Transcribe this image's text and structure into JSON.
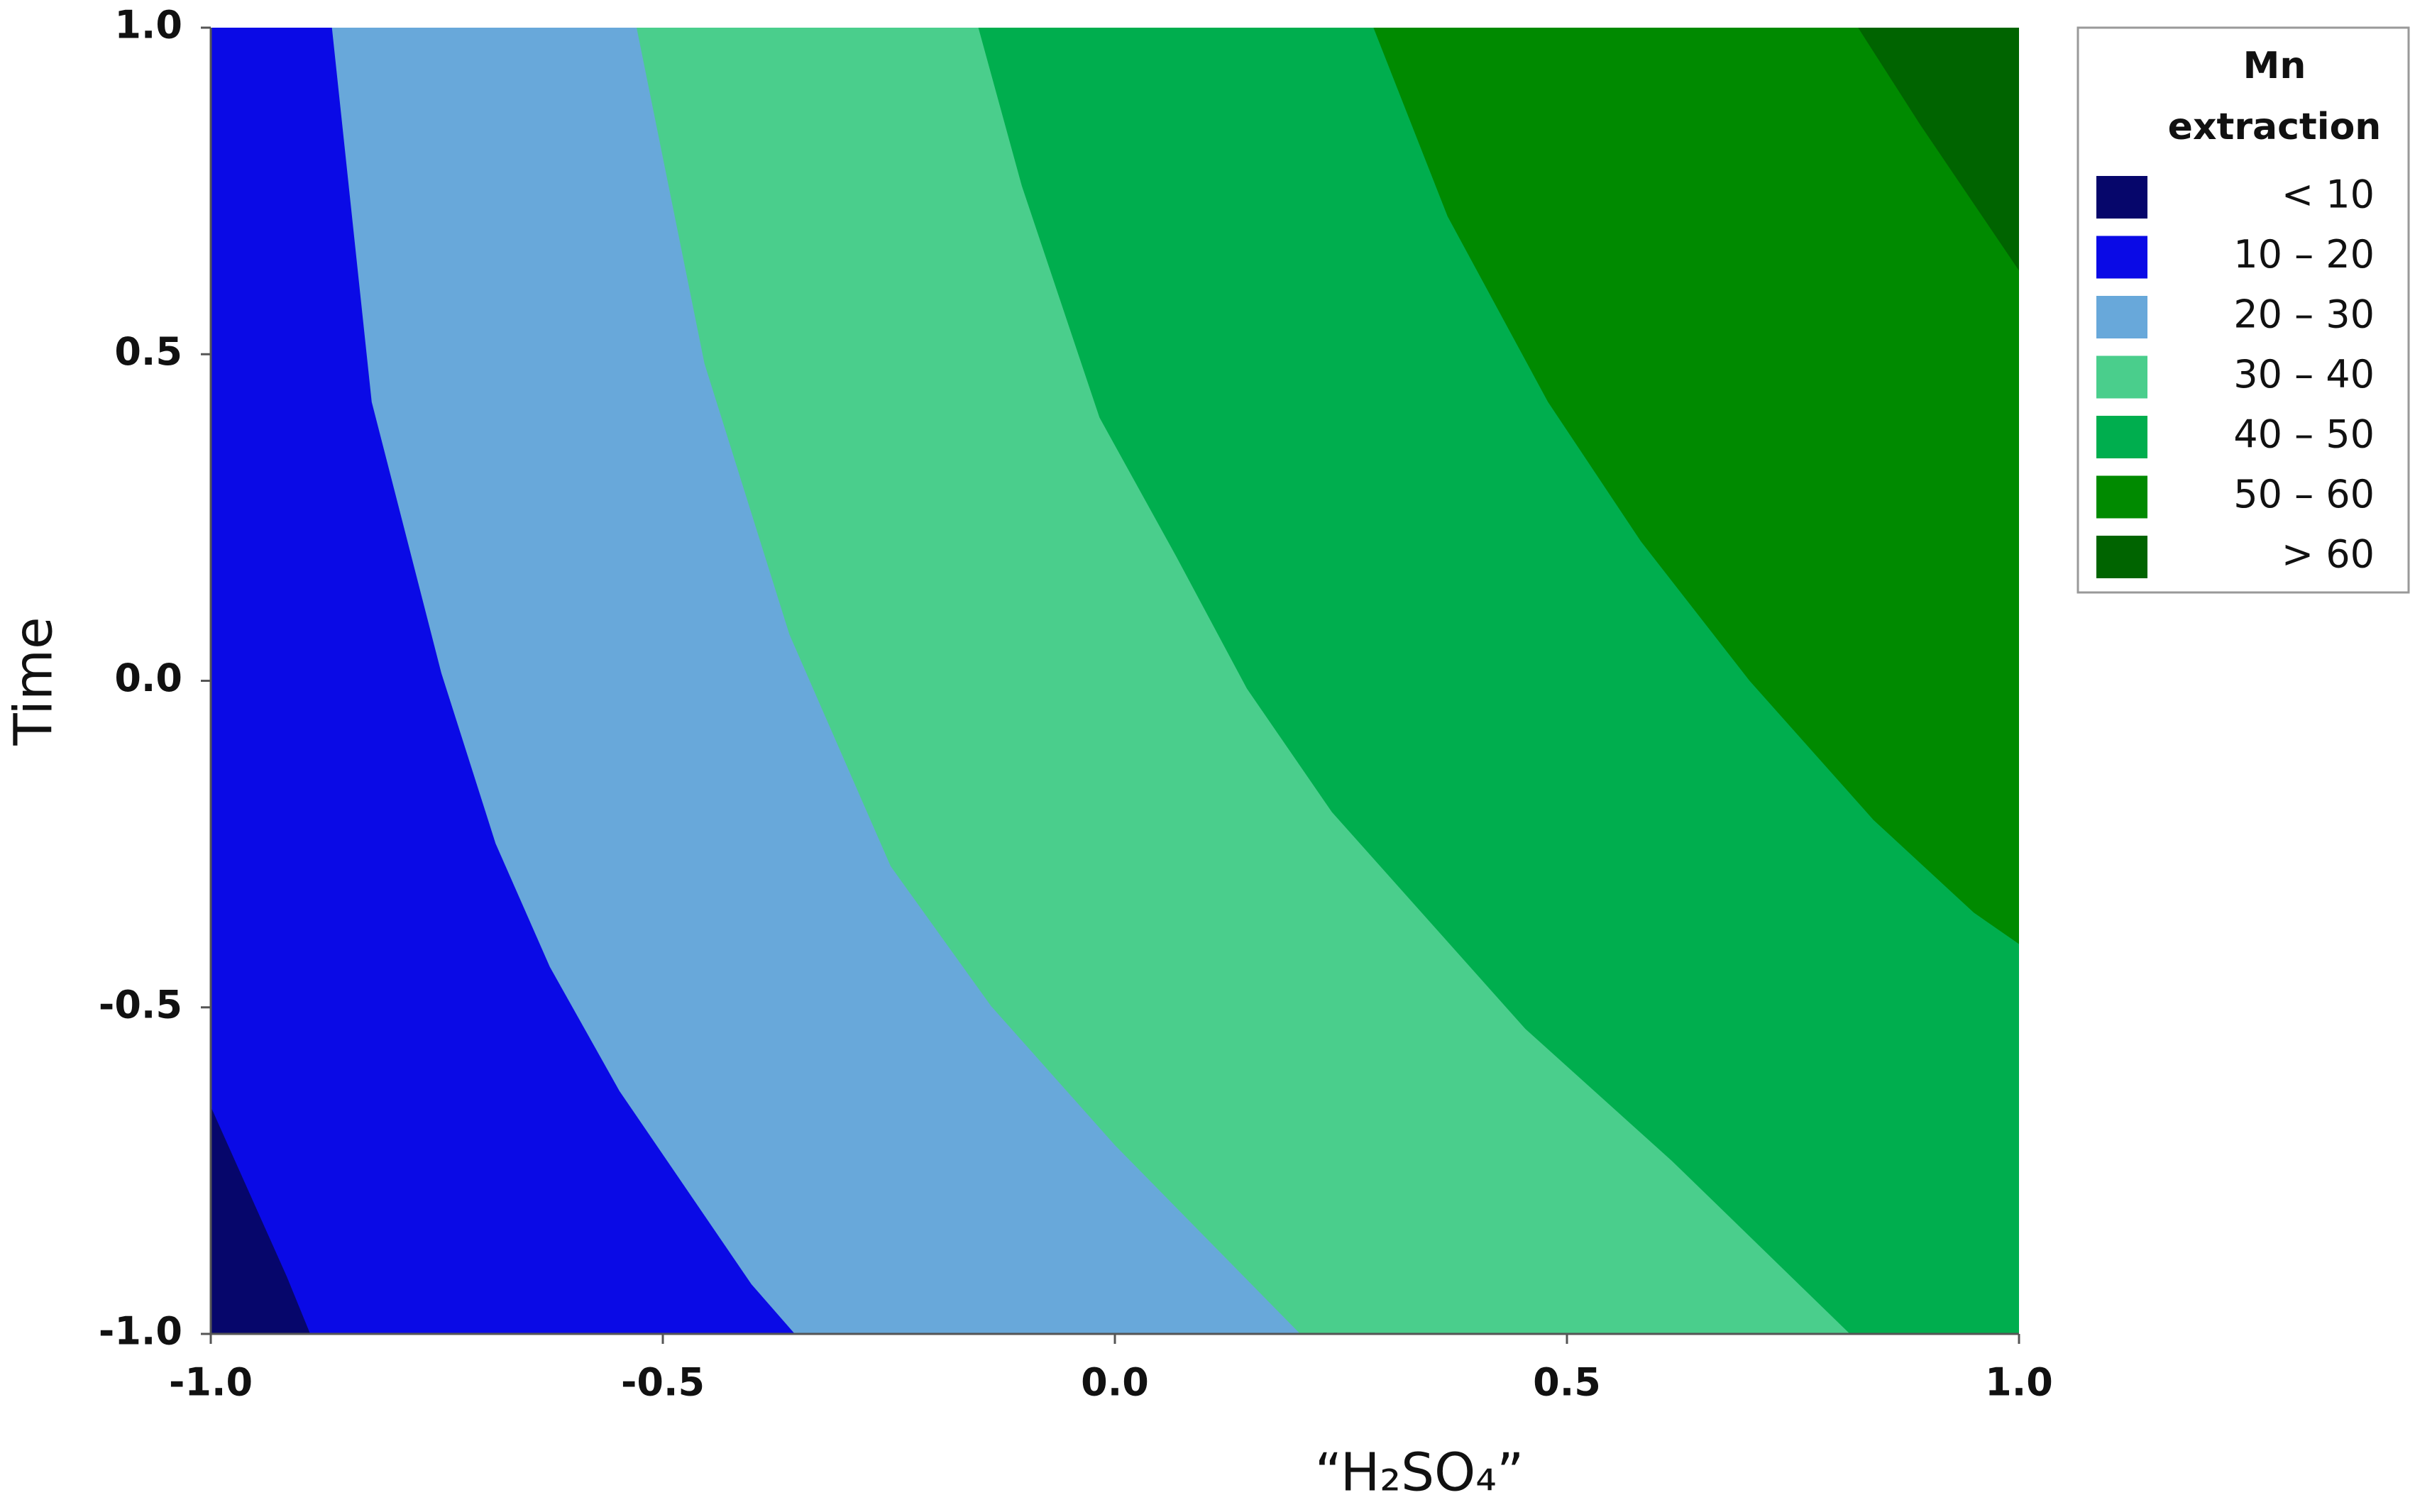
{
  "chart_data": {
    "type": "contour",
    "x_label": "“H₂SO₄”",
    "y_label": "Time",
    "legend_title": "Mn extraction",
    "xlim": [
      -1,
      1
    ],
    "ylim": [
      -1,
      1
    ],
    "xticks": [
      {
        "value": -1,
        "label": "-1.0"
      },
      {
        "value": -0.5,
        "label": "-0.5"
      },
      {
        "value": 0,
        "label": "0.0"
      },
      {
        "value": 0.5,
        "label": "0.5"
      },
      {
        "value": 1,
        "label": "1.0"
      }
    ],
    "yticks": [
      {
        "value": -1,
        "label": "-1.0"
      },
      {
        "value": -0.5,
        "label": "-0.5"
      },
      {
        "value": 0,
        "label": "0.0"
      },
      {
        "value": 0.5,
        "label": "0.5"
      },
      {
        "value": 1,
        "label": "1.0"
      }
    ],
    "bands": [
      {
        "name": "< 10",
        "color": "#06066b"
      },
      {
        "name": "10 – 20",
        "color": "#0a0ae6"
      },
      {
        "name": "20 – 30",
        "color": "#68a8da"
      },
      {
        "name": "30 – 40",
        "color": "#4ace8c"
      },
      {
        "name": "40 – 50",
        "color": "#00ae4e"
      },
      {
        "name": "50 – 60",
        "color": "#008a00"
      },
      {
        "name": "> 60",
        "color": "#006400"
      }
    ],
    "contours": [
      {
        "x": [
          -1,
          -0.916,
          -0.89
        ],
        "y": [
          -0.652,
          -0.912,
          -1
        ]
      },
      {
        "x": [
          -0.866,
          -0.822,
          -0.745,
          -0.685,
          -0.625,
          -0.548,
          -0.402,
          -0.354
        ],
        "y": [
          1,
          0.427,
          0.012,
          -0.249,
          -0.438,
          -0.628,
          -0.924,
          -1
        ]
      },
      {
        "x": [
          -0.529,
          -0.454,
          -0.36,
          -0.248,
          -0.137,
          0,
          0.205
        ],
        "y": [
          1,
          0.486,
          0.071,
          -0.284,
          -0.498,
          -0.711,
          -1
        ]
      },
      {
        "x": [
          -0.151,
          -0.103,
          -0.017,
          0.068,
          0.146,
          0.24,
          0.454,
          0.616,
          0.813
        ],
        "y": [
          1,
          0.758,
          0.403,
          0.19,
          -0.012,
          -0.201,
          -0.533,
          -0.735,
          -1
        ]
      },
      {
        "x": [
          0.286,
          0.368,
          0.479,
          0.582,
          0.702,
          0.839,
          0.95,
          1
        ],
        "y": [
          1,
          0.711,
          0.427,
          0.213,
          0,
          -0.213,
          -0.355,
          -0.403
        ]
      },
      {
        "x": [
          0.822,
          0.89,
          1
        ],
        "y": [
          1,
          0.853,
          0.628
        ]
      }
    ]
  }
}
